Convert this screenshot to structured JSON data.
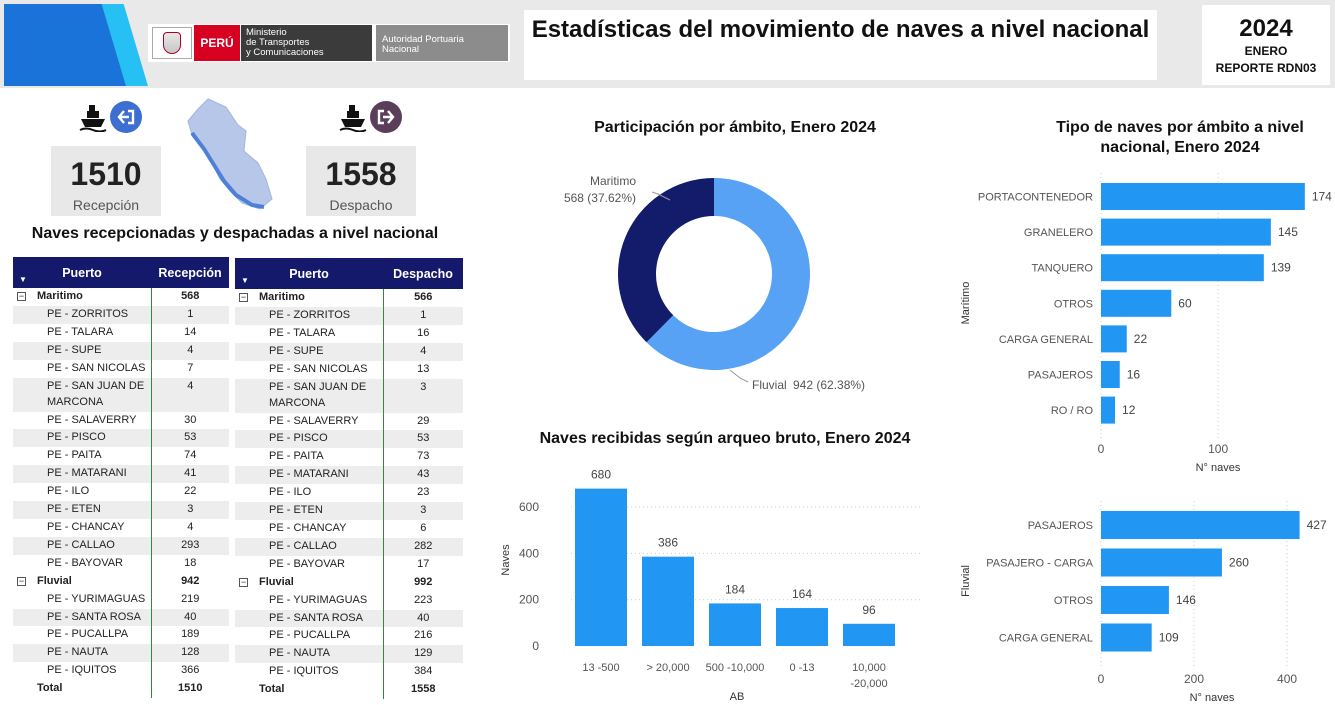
{
  "header": {
    "title": "Estadísticas del movimiento de naves a nivel nacional",
    "year": "2024",
    "month": "ENERO",
    "report": "REPORTE RDN03",
    "logo_peru": "PERÚ",
    "logo_ministry_1": "Ministerio",
    "logo_ministry_2": "de Transportes",
    "logo_ministry_3": "y Comunicaciones",
    "logo_authority_1": "Autoridad Portuaria",
    "logo_authority_2": "Nacional"
  },
  "kpis": {
    "reception": {
      "value": "1510",
      "label": "Recepción"
    },
    "dispatch": {
      "value": "1558",
      "label": "Despacho"
    }
  },
  "tables_title": "Naves recepcionadas y despachadas a nivel nacional",
  "reception_table": {
    "headers": [
      "Puerto",
      "Recepción"
    ],
    "groups": [
      {
        "name": "Maritimo",
        "total": "568",
        "rows": [
          [
            "PE - ZORRITOS",
            "1"
          ],
          [
            "PE - TALARA",
            "14"
          ],
          [
            "PE - SUPE",
            "4"
          ],
          [
            "PE - SAN NICOLAS",
            "7"
          ],
          [
            "PE - SAN JUAN DE MARCONA",
            "4"
          ],
          [
            "PE - SALAVERRY",
            "30"
          ],
          [
            "PE - PISCO",
            "53"
          ],
          [
            "PE - PAITA",
            "74"
          ],
          [
            "PE - MATARANI",
            "41"
          ],
          [
            "PE - ILO",
            "22"
          ],
          [
            "PE - ETEN",
            "3"
          ],
          [
            "PE - CHANCAY",
            "4"
          ],
          [
            "PE - CALLAO",
            "293"
          ],
          [
            "PE - BAYOVAR",
            "18"
          ]
        ]
      },
      {
        "name": "Fluvial",
        "total": "942",
        "rows": [
          [
            "PE - YURIMAGUAS",
            "219"
          ],
          [
            "PE - SANTA ROSA",
            "40"
          ],
          [
            "PE - PUCALLPA",
            "189"
          ],
          [
            "PE - NAUTA",
            "128"
          ],
          [
            "PE - IQUITOS",
            "366"
          ]
        ]
      }
    ],
    "total_label": "Total",
    "total": "1510"
  },
  "dispatch_table": {
    "headers": [
      "Puerto",
      "Despacho"
    ],
    "groups": [
      {
        "name": "Maritimo",
        "total": "566",
        "rows": [
          [
            "PE - ZORRITOS",
            "1"
          ],
          [
            "PE - TALARA",
            "16"
          ],
          [
            "PE - SUPE",
            "4"
          ],
          [
            "PE - SAN NICOLAS",
            "13"
          ],
          [
            "PE - SAN JUAN DE MARCONA",
            "3"
          ],
          [
            "PE - SALAVERRY",
            "29"
          ],
          [
            "PE - PISCO",
            "53"
          ],
          [
            "PE - PAITA",
            "73"
          ],
          [
            "PE - MATARANI",
            "43"
          ],
          [
            "PE - ILO",
            "23"
          ],
          [
            "PE - ETEN",
            "3"
          ],
          [
            "PE - CHANCAY",
            "6"
          ],
          [
            "PE - CALLAO",
            "282"
          ],
          [
            "PE - BAYOVAR",
            "17"
          ]
        ]
      },
      {
        "name": "Fluvial",
        "total": "992",
        "rows": [
          [
            "PE - YURIMAGUAS",
            "223"
          ],
          [
            "PE - SANTA ROSA",
            "40"
          ],
          [
            "PE - PUCALLPA",
            "216"
          ],
          [
            "PE - NAUTA",
            "129"
          ],
          [
            "PE - IQUITOS",
            "384"
          ]
        ]
      }
    ],
    "total_label": "Total",
    "total": "1558"
  },
  "colors": {
    "navy": "#14196b",
    "blue": "#2196f3",
    "lightblue": "#57a2f5",
    "darkpie": "#131c6b"
  },
  "chart_data": [
    {
      "type": "pie",
      "title": "Participación por ámbito, Enero 2024",
      "slices": [
        {
          "name": "Maritimo",
          "value": 568,
          "label": "568 (37.62%)"
        },
        {
          "name": "Fluvial",
          "value": 942,
          "label": "942 (62.38%)"
        }
      ]
    },
    {
      "type": "bar",
      "title": "Naves recibidas según arqueo bruto, Enero 2024",
      "categories": [
        "13 -500",
        "> 20,000",
        "500 -10,000",
        "0 -13",
        "10,000 -20,000"
      ],
      "values": [
        680,
        386,
        184,
        164,
        96
      ],
      "xlabel": "AB",
      "ylabel": "Naves",
      "ylim": [
        0,
        700
      ],
      "yticks": [
        0,
        200,
        400,
        600
      ]
    },
    {
      "type": "bar",
      "orientation": "horizontal",
      "title": "Tipo de naves por ámbito a  nivel nacional, Enero 2024",
      "group": "Marítimo",
      "categories": [
        "PORTACONTENEDOR",
        "GRANELERO",
        "TANQUERO",
        "OTROS",
        "CARGA GENERAL",
        "PASAJEROS",
        "RO / RO"
      ],
      "values": [
        174,
        145,
        139,
        60,
        22,
        16,
        12
      ],
      "xlabel": "N° naves",
      "xlim": [
        0,
        175
      ],
      "xticks": [
        0,
        100
      ]
    },
    {
      "type": "bar",
      "orientation": "horizontal",
      "group": "Fluvial",
      "categories": [
        "PASAJEROS",
        "PASAJERO - CARGA",
        "OTROS",
        "CARGA GENERAL"
      ],
      "values": [
        427,
        260,
        146,
        109
      ],
      "xlabel": "N° naves",
      "xlim": [
        0,
        430
      ],
      "xticks": [
        0,
        200,
        400
      ]
    }
  ]
}
